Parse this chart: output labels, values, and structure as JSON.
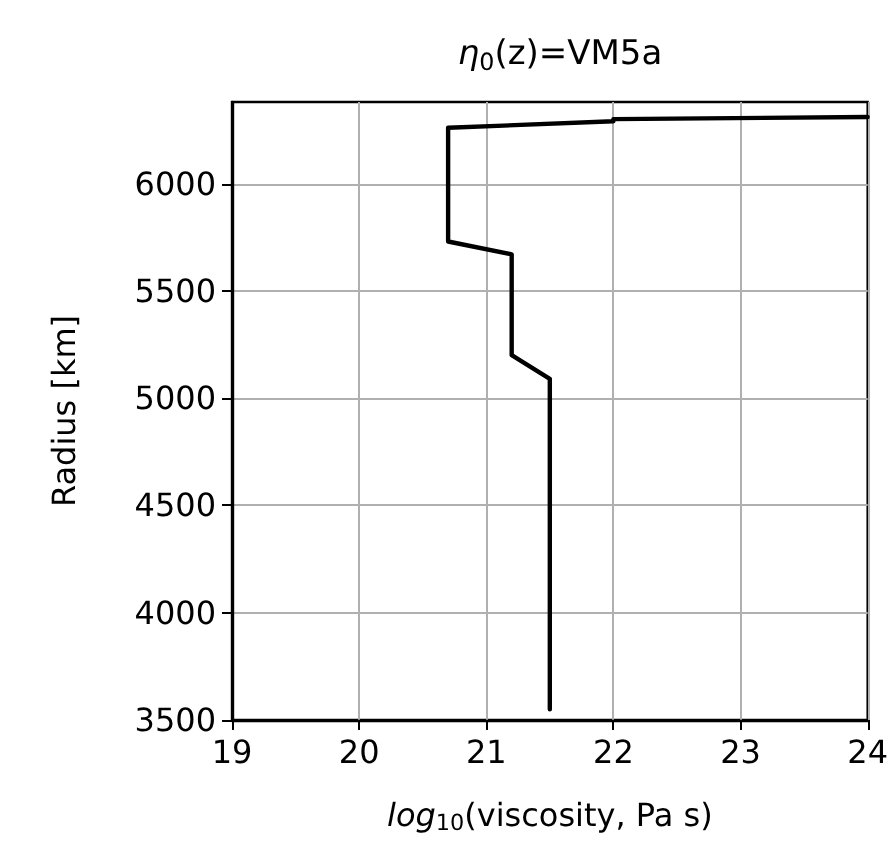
{
  "chart_data": {
    "type": "line",
    "title": "η$_{0}$(z)=VM5a",
    "xlabel": "log$_{10}$(viscosity, Pa s)",
    "ylabel": "Radius [km]",
    "series": [
      {
        "color": "#000000",
        "x": [
          24,
          22,
          22,
          20.7,
          20.7,
          21.2,
          21.2,
          21.5,
          21.5
        ],
        "values": [
          6310,
          6300,
          6290,
          6260,
          5730,
          5670,
          5200,
          5090,
          3550
        ]
      }
    ],
    "xlim": [
      19,
      24
    ],
    "xticks": [
      19,
      20,
      21,
      22,
      23,
      24
    ],
    "ylim": [
      3500,
      6380
    ],
    "yticks": [
      3500,
      4000,
      4500,
      5000,
      5500,
      6000
    ],
    "grid": true,
    "marker": "none",
    "line_style": "solid"
  }
}
